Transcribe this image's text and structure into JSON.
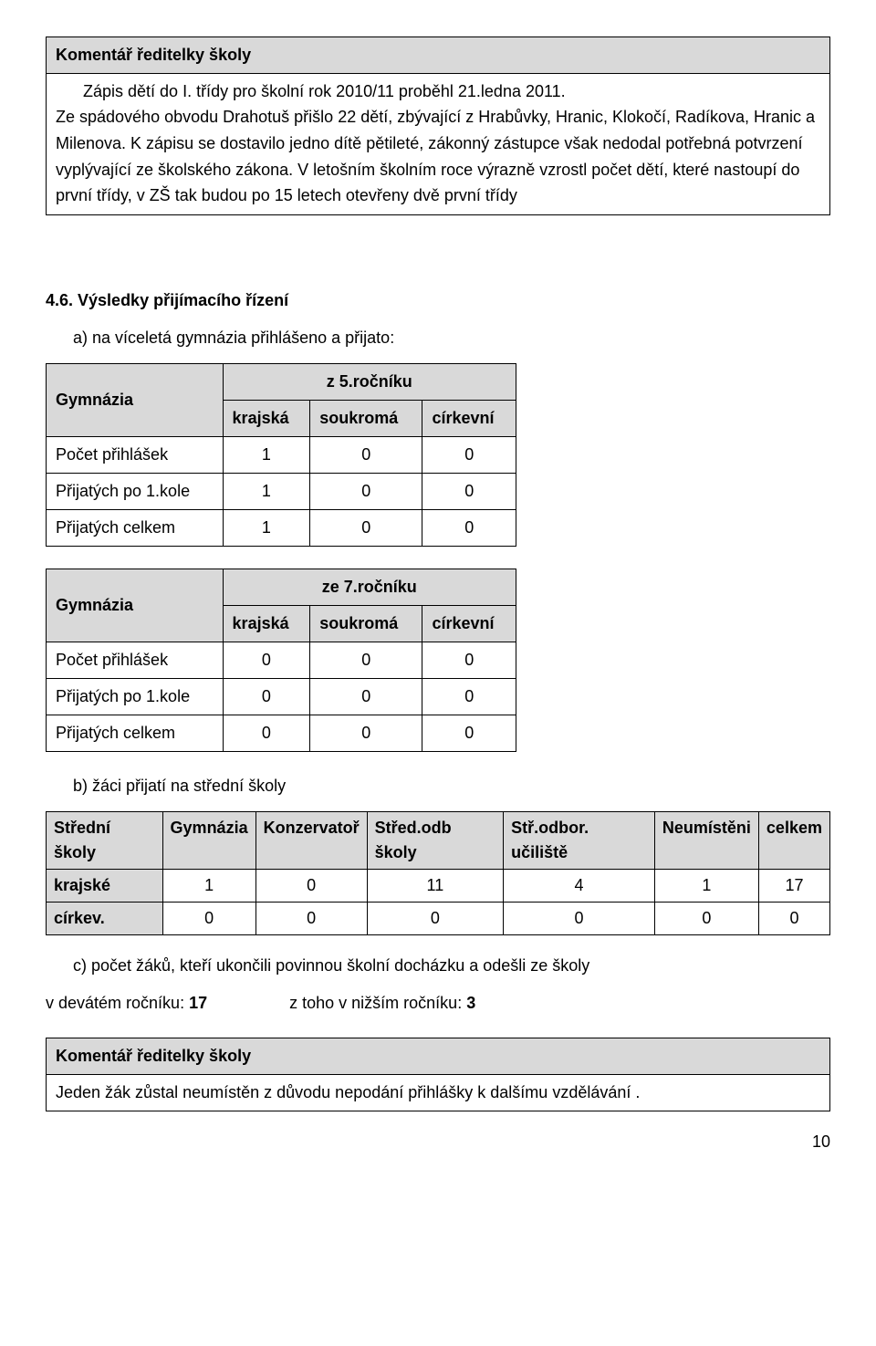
{
  "comment1": {
    "header": "Komentář ředitelky školy",
    "body_lines": [
      "Zápis dětí do I. třídy pro školní rok 2010/11  proběhl 21.ledna  2011.",
      "Ze spádového obvodu Drahotuš  přišlo  22 dětí, zbývající z Hrabůvky, Hranic, Klokočí, Radíkova, Hranic  a Milenova. K zápisu se dostavilo jedno dítě pětileté, zákonný zástupce však nedodal potřebná potvrzení vyplývající ze školského zákona. V letošním školním roce výrazně vzrostl počet dětí, které nastoupí do první třídy, v ZŠ tak budou po 15 letech otevřeny dvě první třídy"
    ]
  },
  "section46": {
    "title": "4.6. Výsledky přijímacího řízení",
    "item_a": "a)  na víceletá gymnázia přihlášeno a přijato:"
  },
  "table_a": {
    "title_cell": "Gymnázia",
    "group_header": "z 5.ročníku",
    "columns": [
      "krajská",
      "soukromá",
      "církevní"
    ],
    "rows": [
      {
        "label": "Počet přihlášek",
        "values": [
          "1",
          "0",
          "0"
        ]
      },
      {
        "label": "Přijatých po 1.kole",
        "values": [
          "1",
          "0",
          "0"
        ]
      },
      {
        "label": "Přijatých celkem",
        "values": [
          "1",
          "0",
          "0"
        ]
      }
    ]
  },
  "table_b": {
    "title_cell": "Gymnázia",
    "group_header": "ze 7.ročníku",
    "columns": [
      "krajská",
      "soukromá",
      "církevní"
    ],
    "rows": [
      {
        "label": "Počet přihlášek",
        "values": [
          "0",
          "0",
          "0"
        ]
      },
      {
        "label": "Přijatých po 1.kole",
        "values": [
          "0",
          "0",
          "0"
        ]
      },
      {
        "label": "Přijatých celkem",
        "values": [
          "0",
          "0",
          "0"
        ]
      }
    ]
  },
  "item_b": "b)  žáci přijatí na střední školy",
  "table_c": {
    "headers": [
      "Střední školy",
      "Gymnázia",
      "Konzervatoř",
      "Střed.odb školy",
      "Stř.odbor. učiliště",
      "Neumístěni",
      "celkem"
    ],
    "rows": [
      {
        "label": "krajské",
        "values": [
          "1",
          "0",
          "11",
          "4",
          "1",
          "17"
        ]
      },
      {
        "label": "církev.",
        "values": [
          "0",
          "0",
          "0",
          "0",
          "0",
          "0"
        ]
      }
    ]
  },
  "item_c": "c)  počet žáků, kteří ukončili povinnou školní docházku a odešli ze školy",
  "ninth_grade_label": "v devátém ročníku:",
  "ninth_grade_value": "17",
  "lower_grade_label": "z toho v nižším ročníku:",
  "lower_grade_value": "3",
  "comment2": {
    "header": "Komentář ředitelky školy",
    "body": "Jeden žák zůstal neumístěn z důvodu  nepodání přihlášky k dalšímu vzdělávání ."
  },
  "page_number": "10"
}
